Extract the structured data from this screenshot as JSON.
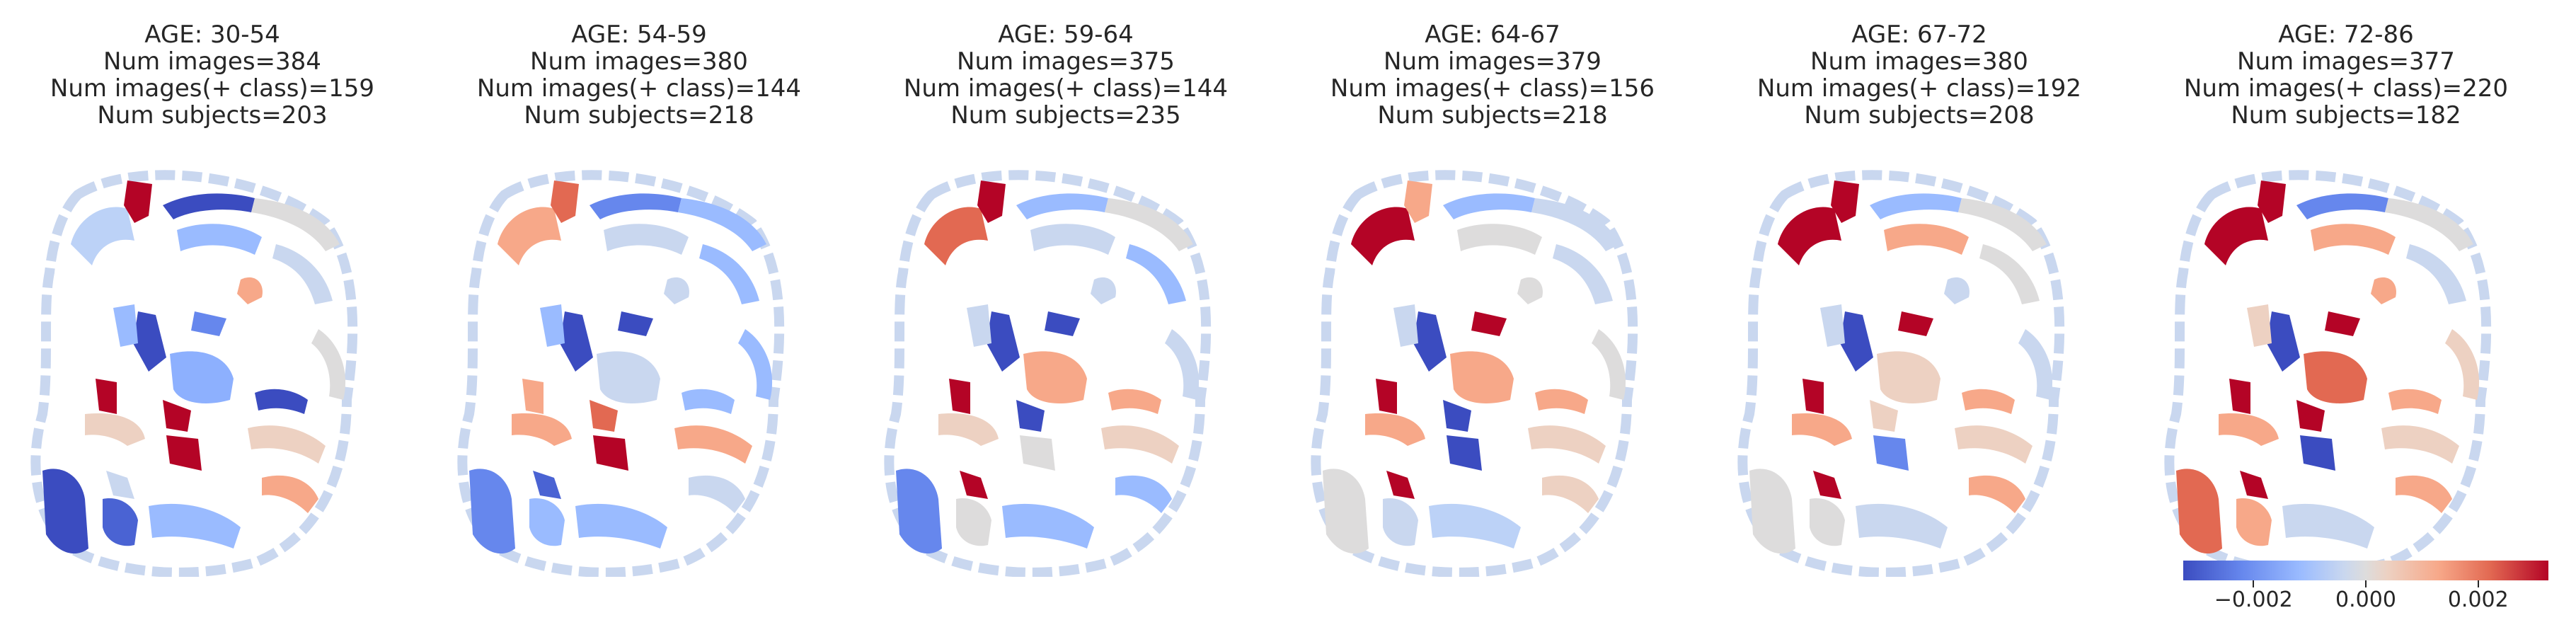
{
  "panels": [
    {
      "title": [
        "AGE: 30-54",
        "Num images=384",
        "Num images(+ class)=159",
        "Num subjects=203"
      ],
      "colors": {
        "pf1": "#bcd2f7",
        "pf2": "#b40426",
        "pf3": "#3b4cc0",
        "pf4": "#dddcdc",
        "pf5": "#9abbff",
        "pf6": "#c9d7ef",
        "vent1": "#3b4cc0",
        "vent2": "#6687ed",
        "vent3": "#f7a889",
        "caud": "#9abbff",
        "put": "#8db0fe",
        "thal1": "#b40426",
        "thal2": "#edd1c2",
        "temp1": "#3b4cc0",
        "temp2": "#4a63d3",
        "temp3": "#9abbff",
        "temp4": "#c9d7ef",
        "temp5": "#edd1c2",
        "insula": "#b40426",
        "insula2": "#3b4cc0",
        "ctx1": "#b40426",
        "ctx2": "#dddcdc",
        "ctx3": "#f7a889"
      }
    },
    {
      "title": [
        "AGE: 54-59",
        "Num images=380",
        "Num images(+ class)=144",
        "Num subjects=218"
      ],
      "colors": {
        "pf1": "#f7a889",
        "pf2": "#e26952",
        "pf3": "#6687ed",
        "pf4": "#9abbff",
        "pf5": "#c9d7ef",
        "pf6": "#9abbff",
        "vent1": "#3b4cc0",
        "vent2": "#3b4cc0",
        "vent3": "#c9d7ef",
        "caud": "#9abbff",
        "put": "#c9d7ef",
        "thal1": "#b40426",
        "thal2": "#f7a889",
        "temp1": "#6687ed",
        "temp2": "#9abbff",
        "temp3": "#9abbff",
        "temp4": "#4a63d3",
        "temp5": "#f7a889",
        "insula": "#e26952",
        "insula2": "#9abbff",
        "ctx1": "#f7a889",
        "ctx2": "#9abbff",
        "ctx3": "#c9d7ef"
      }
    },
    {
      "title": [
        "AGE: 59-64",
        "Num images=375",
        "Num images(+ class)=144",
        "Num subjects=235"
      ],
      "colors": {
        "pf1": "#e26952",
        "pf2": "#b40426",
        "pf3": "#9abbff",
        "pf4": "#dddcdc",
        "pf5": "#c9d7ef",
        "pf6": "#9abbff",
        "vent1": "#3b4cc0",
        "vent2": "#3b4cc0",
        "vent3": "#c9d7ef",
        "caud": "#c9d7ef",
        "put": "#f7a889",
        "thal1": "#dddcdc",
        "thal2": "#edd1c2",
        "temp1": "#6687ed",
        "temp2": "#dddcdc",
        "temp3": "#9abbff",
        "temp4": "#b40426",
        "temp5": "#edd1c2",
        "insula": "#3b4cc0",
        "insula2": "#f7a889",
        "ctx1": "#b40426",
        "ctx2": "#c9d7ef",
        "ctx3": "#9abbff"
      }
    },
    {
      "title": [
        "AGE: 64-67",
        "Num images=379",
        "Num images(+ class)=156",
        "Num subjects=218"
      ],
      "colors": {
        "pf1": "#b40426",
        "pf2": "#f7a889",
        "pf3": "#9abbff",
        "pf4": "#c9d7ef",
        "pf5": "#dddcdc",
        "pf6": "#c9d7ef",
        "vent1": "#3b4cc0",
        "vent2": "#b40426",
        "vent3": "#dddcdc",
        "caud": "#c9d7ef",
        "put": "#f7a889",
        "thal1": "#3b4cc0",
        "thal2": "#f7a889",
        "temp1": "#dddcdc",
        "temp2": "#c9d7ef",
        "temp3": "#bcd2f7",
        "temp4": "#b40426",
        "temp5": "#edd1c2",
        "insula": "#3b4cc0",
        "insula2": "#f7a889",
        "ctx1": "#b40426",
        "ctx2": "#dddcdc",
        "ctx3": "#edd1c2"
      }
    },
    {
      "title": [
        "AGE: 67-72",
        "Num images=380",
        "Num images(+ class)=192",
        "Num subjects=208"
      ],
      "colors": {
        "pf1": "#b40426",
        "pf2": "#b40426",
        "pf3": "#9abbff",
        "pf4": "#dddcdc",
        "pf5": "#f7a889",
        "pf6": "#dddcdc",
        "vent1": "#3b4cc0",
        "vent2": "#b40426",
        "vent3": "#c9d7ef",
        "caud": "#c9d7ef",
        "put": "#edd1c2",
        "thal1": "#6687ed",
        "thal2": "#f7a889",
        "temp1": "#dddcdc",
        "temp2": "#dddcdc",
        "temp3": "#c9d7ef",
        "temp4": "#b40426",
        "temp5": "#edd1c2",
        "insula": "#edd1c2",
        "insula2": "#f7a889",
        "ctx1": "#b40426",
        "ctx2": "#c9d7ef",
        "ctx3": "#f7a889"
      }
    },
    {
      "title": [
        "AGE: 72-86",
        "Num images=377",
        "Num images(+ class)=220",
        "Num subjects=182"
      ],
      "colors": {
        "pf1": "#b40426",
        "pf2": "#b40426",
        "pf3": "#6687ed",
        "pf4": "#dddcdc",
        "pf5": "#f7a889",
        "pf6": "#c9d7ef",
        "vent1": "#3b4cc0",
        "vent2": "#b40426",
        "vent3": "#f7a889",
        "caud": "#edd1c2",
        "put": "#e26952",
        "thal1": "#3b4cc0",
        "thal2": "#f7a889",
        "temp1": "#e26952",
        "temp2": "#f7a889",
        "temp3": "#c9d7ef",
        "temp4": "#b40426",
        "temp5": "#edd1c2",
        "insula": "#b40426",
        "insula2": "#f7a889",
        "ctx1": "#b40426",
        "ctx2": "#edd1c2",
        "ctx3": "#f7a889"
      }
    }
  ],
  "colorbar": {
    "ticks": [
      {
        "label": "−0.002",
        "value": -0.002
      },
      {
        "label": "0.000",
        "value": 0.0
      },
      {
        "label": "0.002",
        "value": 0.002
      }
    ],
    "range": [
      -0.00325,
      0.00325
    ]
  }
}
